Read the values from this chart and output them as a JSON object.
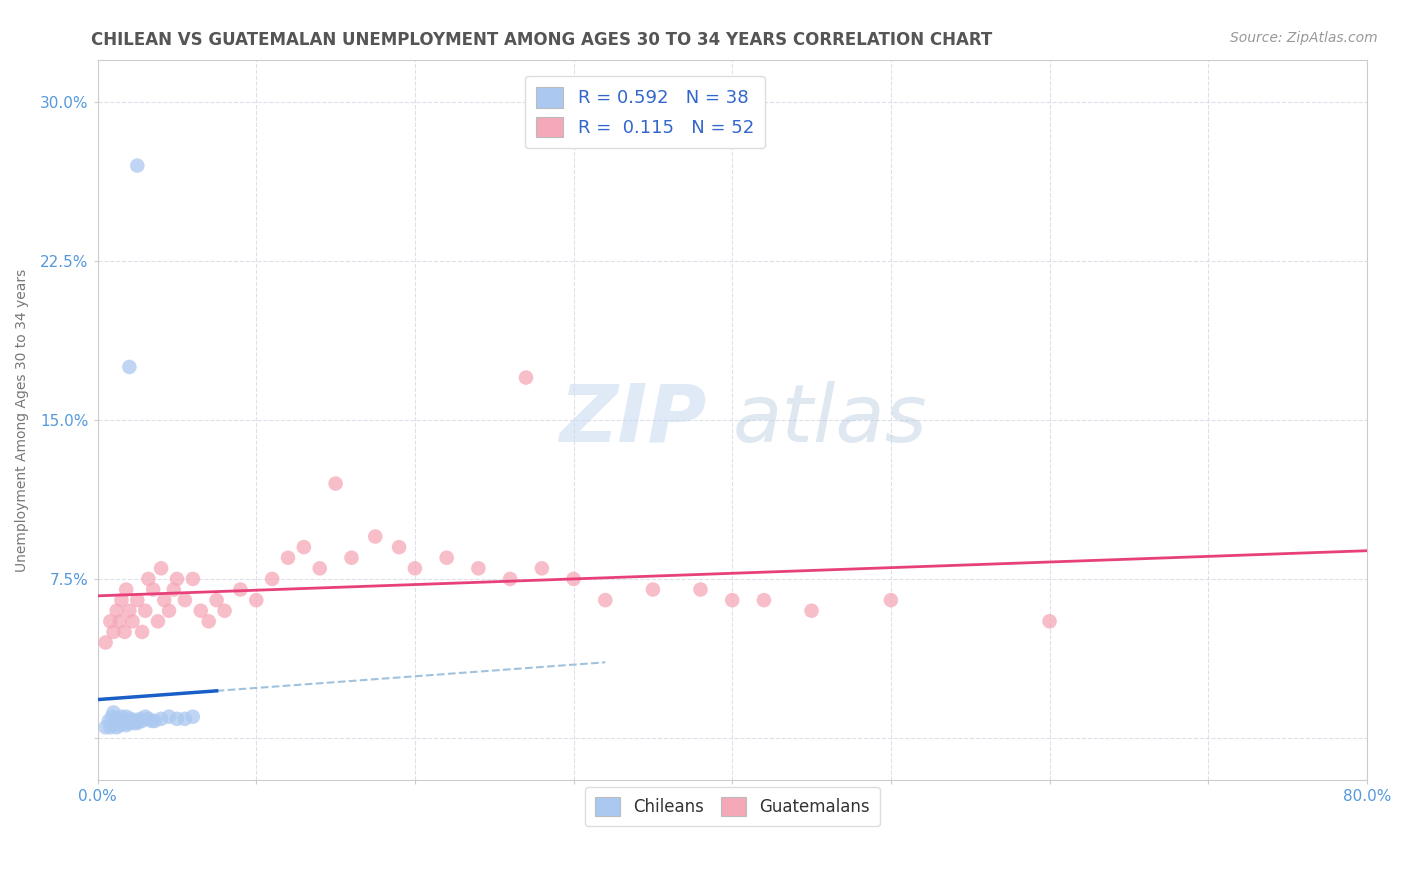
{
  "title": "CHILEAN VS GUATEMALAN UNEMPLOYMENT AMONG AGES 30 TO 34 YEARS CORRELATION CHART",
  "source": "Source: ZipAtlas.com",
  "ylabel": "Unemployment Among Ages 30 to 34 years",
  "xlim": [
    0,
    0.8
  ],
  "ylim": [
    -0.02,
    0.32
  ],
  "xtick_vals": [
    0.0,
    0.1,
    0.2,
    0.3,
    0.4,
    0.5,
    0.6,
    0.7,
    0.8
  ],
  "xticklabels": [
    "0.0%",
    "",
    "",
    "",
    "",
    "",
    "",
    "",
    "80.0%"
  ],
  "ytick_vals": [
    0.0,
    0.075,
    0.15,
    0.225,
    0.3
  ],
  "yticklabels": [
    "",
    "7.5%",
    "15.0%",
    "22.5%",
    "30.0%"
  ],
  "blue_x": [
    0.005,
    0.007,
    0.008,
    0.009,
    0.01,
    0.01,
    0.011,
    0.012,
    0.012,
    0.013,
    0.014,
    0.015,
    0.015,
    0.016,
    0.017,
    0.018,
    0.018,
    0.019,
    0.02,
    0.021,
    0.022,
    0.023,
    0.024,
    0.025,
    0.026,
    0.027,
    0.028,
    0.03,
    0.032,
    0.034,
    0.036,
    0.04,
    0.045,
    0.05,
    0.055,
    0.06,
    0.02,
    0.025
  ],
  "blue_y": [
    0.005,
    0.008,
    0.005,
    0.01,
    0.006,
    0.012,
    0.007,
    0.008,
    0.005,
    0.009,
    0.006,
    0.007,
    0.01,
    0.008,
    0.007,
    0.006,
    0.01,
    0.008,
    0.007,
    0.009,
    0.008,
    0.007,
    0.008,
    0.007,
    0.008,
    0.009,
    0.008,
    0.01,
    0.009,
    0.008,
    0.008,
    0.009,
    0.01,
    0.009,
    0.009,
    0.01,
    0.175,
    0.27
  ],
  "pink_x": [
    0.005,
    0.008,
    0.01,
    0.012,
    0.014,
    0.015,
    0.017,
    0.018,
    0.02,
    0.022,
    0.025,
    0.028,
    0.03,
    0.032,
    0.035,
    0.038,
    0.04,
    0.042,
    0.045,
    0.048,
    0.05,
    0.055,
    0.06,
    0.065,
    0.07,
    0.075,
    0.08,
    0.09,
    0.1,
    0.11,
    0.12,
    0.13,
    0.14,
    0.15,
    0.16,
    0.175,
    0.19,
    0.2,
    0.22,
    0.24,
    0.26,
    0.28,
    0.3,
    0.32,
    0.35,
    0.38,
    0.4,
    0.42,
    0.45,
    0.5,
    0.6,
    0.27
  ],
  "pink_y": [
    0.045,
    0.055,
    0.05,
    0.06,
    0.055,
    0.065,
    0.05,
    0.07,
    0.06,
    0.055,
    0.065,
    0.05,
    0.06,
    0.075,
    0.07,
    0.055,
    0.08,
    0.065,
    0.06,
    0.07,
    0.075,
    0.065,
    0.075,
    0.06,
    0.055,
    0.065,
    0.06,
    0.07,
    0.065,
    0.075,
    0.085,
    0.09,
    0.08,
    0.12,
    0.085,
    0.095,
    0.09,
    0.08,
    0.085,
    0.08,
    0.075,
    0.08,
    0.075,
    0.065,
    0.07,
    0.07,
    0.065,
    0.065,
    0.06,
    0.065,
    0.055,
    0.17
  ],
  "blue_color": "#aac8f0",
  "pink_color": "#f5a8b8",
  "blue_line_color": "#1a5fc8",
  "pink_line_color": "#e8407a",
  "dash_line_color": "#90b8d8",
  "watermark_zip": "ZIP",
  "watermark_atlas": "atlas",
  "background_color": "#ffffff",
  "title_color": "#555555",
  "source_color": "#999999",
  "tick_color": "#5599dd",
  "ylabel_color": "#777777",
  "grid_color": "#d8dde8",
  "title_fontsize": 12,
  "tick_fontsize": 11,
  "axis_label_fontsize": 10
}
